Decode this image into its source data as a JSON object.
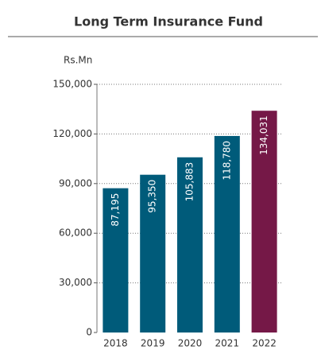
{
  "chart_data": {
    "type": "bar",
    "title": "Long Term Insurance Fund",
    "y_axis_label": "Rs.Mn",
    "categories": [
      "2018",
      "2019",
      "2020",
      "2021",
      "2022"
    ],
    "values": [
      87195,
      95350,
      105883,
      118780,
      134031
    ],
    "value_labels": [
      "87,195",
      "95,350",
      "105,883",
      "118,780",
      "134,031"
    ],
    "colors": [
      "#005b7a",
      "#005b7a",
      "#005b7a",
      "#005b7a",
      "#751847"
    ],
    "ylim": [
      0,
      150000
    ],
    "yticks": [
      0,
      {
        "value": 30000,
        "label": "30,000"
      },
      {
        "value": 60000,
        "label": "60,000"
      },
      {
        "value": 90000,
        "label": "90,000"
      },
      {
        "value": 120000,
        "label": "120,000"
      },
      {
        "value": 150000,
        "label": "150,000"
      }
    ],
    "grid": true
  }
}
